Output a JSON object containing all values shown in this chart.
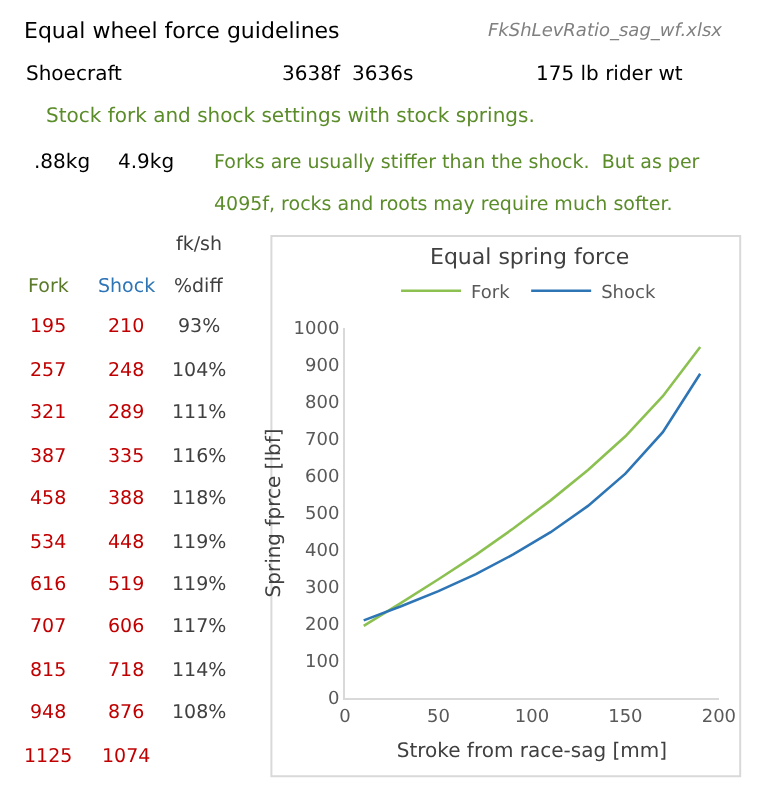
{
  "chart_data": [
    {
      "type": "other",
      "title": "Equal wheel force guidelines",
      "annotations": [
        "FkShLevRatio_sag_wf.xlsx",
        "Shoecraft",
        "3638f",
        "3636s",
        "175 lb rider wt",
        "Stock fork and shock settings with stock springs.",
        ".88kg",
        "4.9kg",
        "Forks are usually stiffer than the shock.  But as per",
        "4095f, rocks and roots may require much softer."
      ]
    },
    {
      "type": "other",
      "annotations": [
        "fk/sh",
        "Fork",
        "Shock",
        "%diff",
        "195",
        "210",
        "93%",
        "257",
        "248",
        "104%",
        "321",
        "289",
        "111%",
        "387",
        "335",
        "116%",
        "458",
        "388",
        "118%",
        "534",
        "448",
        "119%",
        "616",
        "519",
        "119%",
        "707",
        "606",
        "117%",
        "815",
        "718",
        "114%",
        "948",
        "876",
        "108%",
        "1125",
        "1074"
      ]
    },
    {
      "type": "line",
      "title": "Equal spring force",
      "xlabel": "Stroke from race-sag [mm]",
      "ylabel": "Spring fprce [lbf]",
      "x": [
        10,
        30,
        50,
        70,
        90,
        110,
        130,
        150,
        170,
        190
      ],
      "xlim": [
        0,
        200
      ],
      "xticks": [
        0,
        50,
        100,
        150,
        200
      ],
      "ylim": [
        0,
        1000
      ],
      "yticks": [
        0,
        100,
        200,
        300,
        400,
        500,
        600,
        700,
        800,
        900,
        1000
      ],
      "legend": "top",
      "series": [
        {
          "name": "Fork",
          "color": "#8cc152",
          "values": [
            195,
            257,
            321,
            387,
            458,
            534,
            616,
            707,
            815,
            948
          ]
        },
        {
          "name": "Shock",
          "color": "#2e75b6",
          "values": [
            210,
            248,
            289,
            335,
            388,
            448,
            519,
            606,
            718,
            876
          ]
        }
      ]
    }
  ]
}
